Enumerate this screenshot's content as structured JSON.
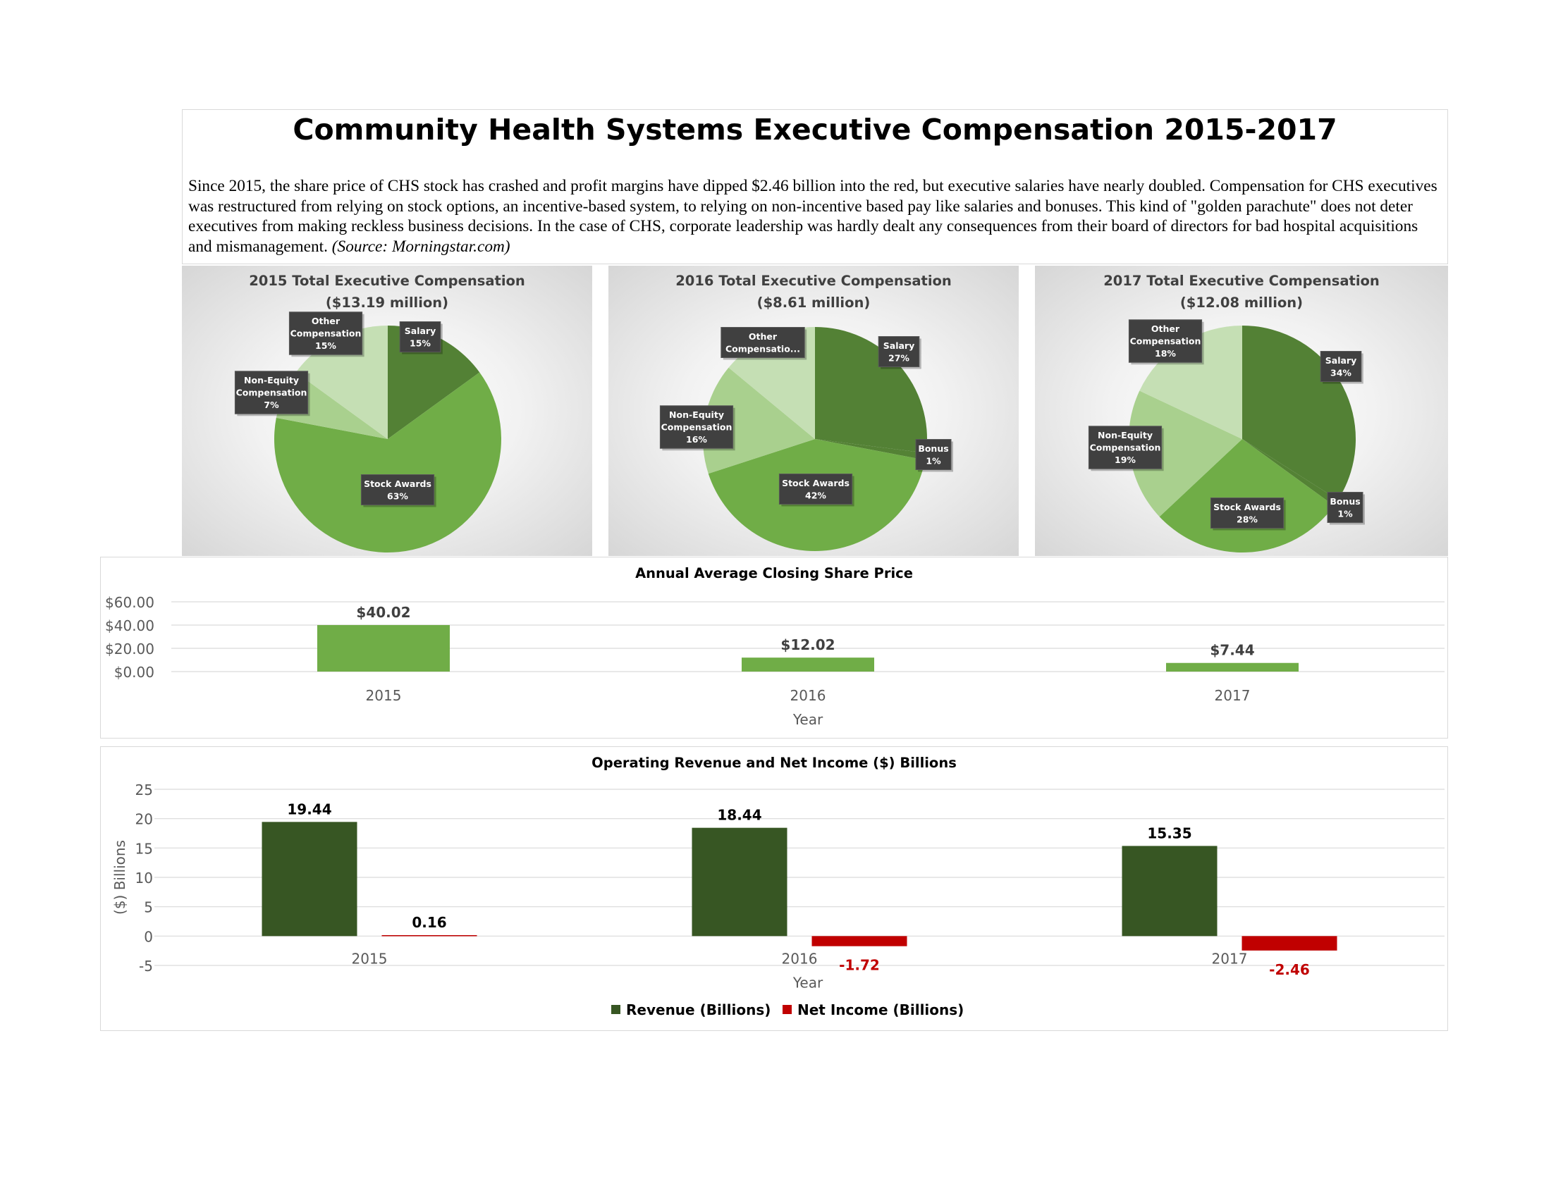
{
  "header": {
    "title": "Community Health Systems Executive Compensation 2015-2017",
    "intro_text": "Since 2015, the share price of CHS stock has crashed and profit margins have dipped $2.46 billion into the red, but executive salaries have nearly doubled. Compensation for CHS executives was restructured from relying on stock options, an incentive-based system, to relying on non-incentive based pay like salaries and bonuses. This kind of \"golden parachute\" does not deter executives from making reckless business decisions. In the case of CHS, corporate leadership was hardly dealt any consequences from their board of directors for bad hospital acquisitions and mismanagement.",
    "source_text": "(Source: Morningstar.com)"
  },
  "chart_data": [
    {
      "type": "pie",
      "title": "2015 Total Executive Compensation",
      "subtitle": "($13.19 million)",
      "slices": [
        {
          "label": "Salary",
          "value": 15,
          "pct_label": "15%",
          "color": "#538135"
        },
        {
          "label": "Stock Awards",
          "value": 63,
          "pct_label": "63%",
          "color": "#70ad47"
        },
        {
          "label": "Non-Equity Compensation",
          "value": 7,
          "pct_label": "7%",
          "color": "#a9d08e"
        },
        {
          "label": "Other Compensation",
          "value": 15,
          "pct_label": "15%",
          "color": "#c5dfb4"
        }
      ]
    },
    {
      "type": "pie",
      "title": "2016 Total Executive Compensation",
      "subtitle": "($8.61 million)",
      "slices": [
        {
          "label": "Salary",
          "value": 27,
          "pct_label": "27%",
          "color": "#538135"
        },
        {
          "label": "Bonus",
          "value": 1,
          "pct_label": "1%",
          "color": "#548235"
        },
        {
          "label": "Stock Awards",
          "value": 42,
          "pct_label": "42%",
          "color": "#70ad47"
        },
        {
          "label": "Non-Equity Compensation",
          "value": 16,
          "pct_label": "16%",
          "color": "#a9d08e"
        },
        {
          "label": "Other Compensatio...",
          "value": 14,
          "pct_label": "",
          "color": "#c5dfb4"
        }
      ]
    },
    {
      "type": "pie",
      "title": "2017 Total Executive Compensation",
      "subtitle": "($12.08 million)",
      "slices": [
        {
          "label": "Salary",
          "value": 34,
          "pct_label": "34%",
          "color": "#538135"
        },
        {
          "label": "Bonus",
          "value": 1,
          "pct_label": "1%",
          "color": "#548235"
        },
        {
          "label": "Stock Awards",
          "value": 28,
          "pct_label": "28%",
          "color": "#70ad47"
        },
        {
          "label": "Non-Equity Compensation",
          "value": 19,
          "pct_label": "19%",
          "color": "#a9d08e"
        },
        {
          "label": "Other Compensation",
          "value": 18,
          "pct_label": "18%",
          "color": "#c5dfb4"
        }
      ]
    },
    {
      "type": "bar",
      "title": "Annual Average Closing Share Price",
      "xlabel": "Year",
      "ylabel": "",
      "categories": [
        "2015",
        "2016",
        "2017"
      ],
      "values": [
        40.02,
        12.02,
        7.44
      ],
      "value_labels": [
        "$40.02",
        "$12.02",
        "$7.44"
      ],
      "yticks": [
        0,
        20,
        40,
        60
      ],
      "ytick_labels": [
        "$0.00",
        "$20.00",
        "$40.00",
        "$60.00"
      ],
      "ylim": [
        0,
        60
      ],
      "color": "#70ad47",
      "grid": true
    },
    {
      "type": "bar",
      "title": "Operating Revenue and Net Income ($) Billions",
      "xlabel": "Year",
      "ylabel": "($) Billions",
      "categories": [
        "2015",
        "2016",
        "2017"
      ],
      "series": [
        {
          "name": "Revenue (Billions)",
          "values": [
            19.44,
            18.44,
            15.35
          ],
          "value_labels": [
            "19.44",
            "18.44",
            "15.35"
          ],
          "color": "#375623"
        },
        {
          "name": "Net Income (Billions)",
          "values": [
            0.16,
            -1.72,
            -2.46
          ],
          "value_labels": [
            "0.16",
            "-1.72",
            "-2.46"
          ],
          "color": "#c00000"
        }
      ],
      "yticks": [
        -5,
        0,
        5,
        10,
        15,
        20,
        25
      ],
      "ylim": [
        -5,
        25
      ],
      "legend": "bottom",
      "grid": true
    }
  ]
}
